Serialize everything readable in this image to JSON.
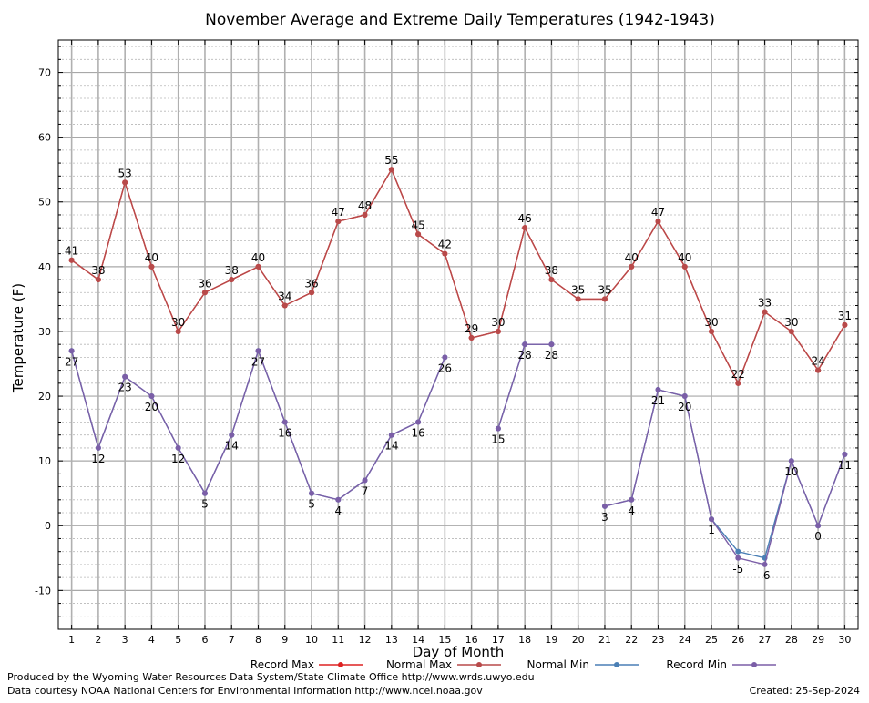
{
  "chart_data": {
    "type": "line",
    "title": "November Average and Extreme Daily Temperatures (1942-1943)",
    "xlabel": "Day of Month",
    "ylabel": "Temperature (F)",
    "xlim": [
      0.5,
      30.5
    ],
    "ylim": [
      -16,
      75
    ],
    "y_ticks": [
      -10,
      0,
      10,
      20,
      30,
      40,
      50,
      60,
      70
    ],
    "x": [
      1,
      2,
      3,
      4,
      5,
      6,
      7,
      8,
      9,
      10,
      11,
      12,
      13,
      14,
      15,
      16,
      17,
      18,
      19,
      20,
      21,
      22,
      23,
      24,
      25,
      26,
      27,
      28,
      29,
      30
    ],
    "grid": true,
    "legend_position": "bottom",
    "series": [
      {
        "name": "Record Max",
        "color": "#dd2222",
        "values": [
          41,
          38,
          53,
          40,
          30,
          36,
          38,
          40,
          34,
          36,
          47,
          48,
          55,
          45,
          42,
          29,
          30,
          46,
          38,
          35,
          35,
          40,
          47,
          40,
          30,
          22,
          33,
          30,
          24,
          31
        ]
      },
      {
        "name": "Normal Max",
        "color": "#b84a4a",
        "values": [
          41,
          38,
          53,
          40,
          30,
          36,
          38,
          40,
          34,
          36,
          47,
          48,
          55,
          45,
          42,
          29,
          30,
          46,
          38,
          35,
          35,
          40,
          47,
          40,
          30,
          22,
          33,
          30,
          24,
          31
        ],
        "labels": [
          "41",
          "38",
          "53",
          "40",
          "30",
          "36",
          "38",
          "40",
          "34",
          "36",
          "47",
          "48",
          "55",
          "45",
          "42",
          "29",
          "30",
          "46",
          "38",
          "35",
          "35",
          "40",
          "47",
          "40",
          "30",
          "22",
          "33",
          "30",
          "24",
          "31"
        ]
      },
      {
        "name": "Normal Min",
        "color": "#4a7fb5",
        "values": [
          27,
          12,
          23,
          20,
          12,
          5,
          14,
          27,
          16,
          5,
          4,
          7,
          14,
          16,
          26,
          null,
          15,
          28,
          28,
          null,
          3,
          4,
          21,
          20,
          1,
          -4,
          -5,
          10,
          0,
          11
        ]
      },
      {
        "name": "Record Min",
        "color": "#7b5ea7",
        "values": [
          27,
          12,
          23,
          20,
          12,
          5,
          14,
          27,
          16,
          5,
          4,
          7,
          14,
          16,
          26,
          null,
          15,
          28,
          28,
          null,
          3,
          4,
          21,
          20,
          1,
          -5,
          -6,
          10,
          0,
          11
        ],
        "labels": [
          "27",
          "12",
          "23",
          "20",
          "12",
          "5",
          "14",
          "27",
          "16",
          "5",
          "4",
          "7",
          "14",
          "16",
          "26",
          "",
          "15",
          "28",
          "28",
          "",
          "3",
          "4",
          "21",
          "20",
          "1",
          "-5",
          "-6",
          "10",
          "0",
          "11"
        ]
      }
    ]
  },
  "footer": {
    "line1": "Produced by the Wyoming Water Resources Data System/State Climate Office http://www.wrds.uwyo.edu",
    "line2": "Data courtesy NOAA National Centers for Environmental Information http://www.ncei.noaa.gov",
    "created": "Created:  25-Sep-2024"
  }
}
